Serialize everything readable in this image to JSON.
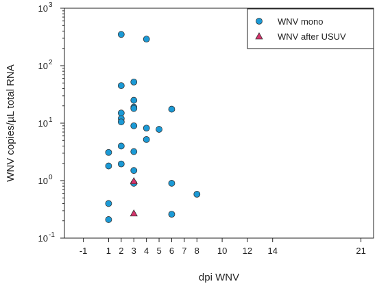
{
  "chart_data": {
    "type": "scatter",
    "xlabel": "dpi WNV",
    "ylabel": "WNV copies/µL total RNA",
    "y_scale": "log",
    "xlim": [
      -2.5,
      22
    ],
    "ylim": [
      0.1,
      1000
    ],
    "x_ticks": [
      -1,
      1,
      2,
      3,
      4,
      5,
      6,
      7,
      8,
      10,
      12,
      14,
      21
    ],
    "y_ticks": [
      {
        "value": 0.1,
        "base": "10",
        "exp": "-1"
      },
      {
        "value": 1,
        "base": "10",
        "exp": "0"
      },
      {
        "value": 10,
        "base": "10",
        "exp": "1"
      },
      {
        "value": 100,
        "base": "10",
        "exp": "2"
      },
      {
        "value": 1000,
        "base": "10",
        "exp": "3"
      }
    ],
    "legend_position": "top-right",
    "series": [
      {
        "name": "WNV mono",
        "marker": "circle",
        "color": "#1b9ad6",
        "points": [
          {
            "x": 1,
            "y": 3.1
          },
          {
            "x": 1,
            "y": 1.8
          },
          {
            "x": 1,
            "y": 0.4
          },
          {
            "x": 1,
            "y": 0.21
          },
          {
            "x": 2,
            "y": 350
          },
          {
            "x": 2,
            "y": 45
          },
          {
            "x": 2,
            "y": 15
          },
          {
            "x": 2,
            "y": 12
          },
          {
            "x": 2,
            "y": 10.5
          },
          {
            "x": 2,
            "y": 4
          },
          {
            "x": 2,
            "y": 1.95
          },
          {
            "x": 3,
            "y": 52
          },
          {
            "x": 3,
            "y": 25
          },
          {
            "x": 3,
            "y": 19
          },
          {
            "x": 3,
            "y": 18
          },
          {
            "x": 3,
            "y": 9
          },
          {
            "x": 3,
            "y": 3.2
          },
          {
            "x": 3,
            "y": 1.5
          },
          {
            "x": 3,
            "y": 0.9
          },
          {
            "x": 4,
            "y": 290
          },
          {
            "x": 4,
            "y": 8.2
          },
          {
            "x": 4,
            "y": 5.2
          },
          {
            "x": 5,
            "y": 7.8
          },
          {
            "x": 6,
            "y": 17.5
          },
          {
            "x": 6,
            "y": 0.9
          },
          {
            "x": 6,
            "y": 0.26
          },
          {
            "x": 8,
            "y": 0.58
          }
        ]
      },
      {
        "name": "WNV after USUV",
        "marker": "triangle",
        "color": "#d6336c",
        "points": [
          {
            "x": 3,
            "y": 0.98
          },
          {
            "x": 3,
            "y": 0.27
          }
        ]
      }
    ]
  }
}
